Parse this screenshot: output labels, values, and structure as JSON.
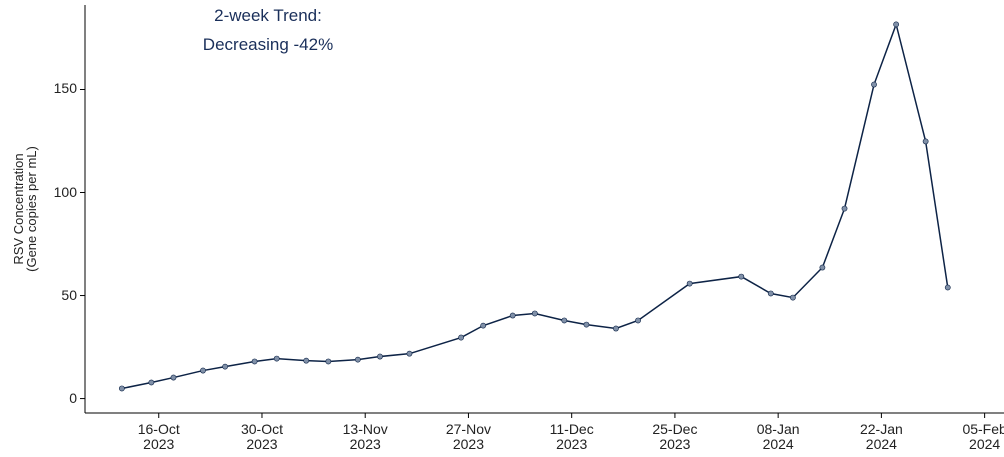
{
  "chart_data": {
    "type": "line",
    "ylabel": "RSV Concentration\n(Gene copies per mL)",
    "annotation": "2-week Trend:\nDecreasing -42%",
    "x": [
      "2023-10-11",
      "2023-10-15",
      "2023-10-18",
      "2023-10-22",
      "2023-10-25",
      "2023-10-29",
      "2023-11-01",
      "2023-11-05",
      "2023-11-08",
      "2023-11-12",
      "2023-11-15",
      "2023-11-19",
      "2023-11-26",
      "2023-11-29",
      "2023-12-03",
      "2023-12-06",
      "2023-12-10",
      "2023-12-13",
      "2023-12-17",
      "2023-12-20",
      "2023-12-27",
      "2024-01-03",
      "2024-01-07",
      "2024-01-10",
      "2024-01-14",
      "2024-01-17",
      "2024-01-21",
      "2024-01-24",
      "2024-01-28",
      "2024-01-31"
    ],
    "series": [
      {
        "color": "#0d2346",
        "marker_color": "#8090a8",
        "values": [
          4.9,
          7.8,
          10.2,
          13.6,
          15.5,
          18,
          19.4,
          18.4,
          18,
          18.9,
          20.4,
          21.8,
          29.6,
          35.4,
          40.3,
          41.3,
          37.9,
          35.9,
          34,
          37.9,
          55.8,
          59.2,
          51,
          49,
          63.6,
          92.2,
          152.4,
          181.6,
          124.8,
          53.9
        ]
      }
    ],
    "xlim": [
      "2023-10-06",
      "2024-02-06"
    ],
    "xticks": [
      {
        "value": "2023-10-16",
        "label": "16-Oct\n2023"
      },
      {
        "value": "2023-10-30",
        "label": "30-Oct\n2023"
      },
      {
        "value": "2023-11-13",
        "label": "13-Nov\n2023"
      },
      {
        "value": "2023-11-27",
        "label": "27-Nov\n2023"
      },
      {
        "value": "2023-12-11",
        "label": "11-Dec\n2023"
      },
      {
        "value": "2023-12-25",
        "label": "25-Dec\n2023"
      },
      {
        "value": "2024-01-08",
        "label": "08-Jan\n2024"
      },
      {
        "value": "2024-01-22",
        "label": "22-Jan\n2024"
      },
      {
        "value": "2024-02-05",
        "label": "05-Feb\n2024"
      }
    ],
    "ylim": [
      -7,
      191
    ],
    "yticks": [
      0,
      50,
      100,
      150
    ]
  }
}
